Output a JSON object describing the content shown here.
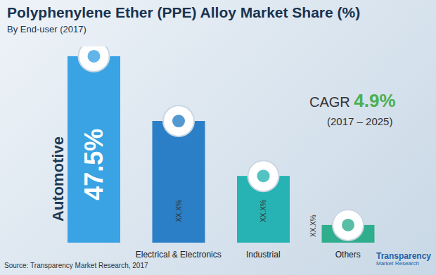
{
  "chart_data": {
    "type": "bar",
    "title": "Polyphenylene Ether (PPE) Alloy Market Share (%)",
    "subtitle": "By End-user (2017)",
    "categories": [
      "Automotive",
      "Electrical & Electronics",
      "Industrial",
      "Others"
    ],
    "values": [
      47.5,
      31.0,
      17.0,
      4.5
    ],
    "value_labels": [
      "47.5%",
      "XX.X%",
      "XX.X%",
      "XX.X%"
    ],
    "colors": [
      "#3aa3e3",
      "#2b7fc6",
      "#27b3b3",
      "#2fae8e"
    ],
    "ylim": [
      0,
      50
    ],
    "data_labels": true,
    "tick_labels": "x",
    "grid": false,
    "annotations": [
      "CAGR",
      "4.9%",
      "(2017 – 2025)"
    ],
    "source": "Source: Transparency Market Research, 2017",
    "logo": "Transparency Market Research"
  }
}
